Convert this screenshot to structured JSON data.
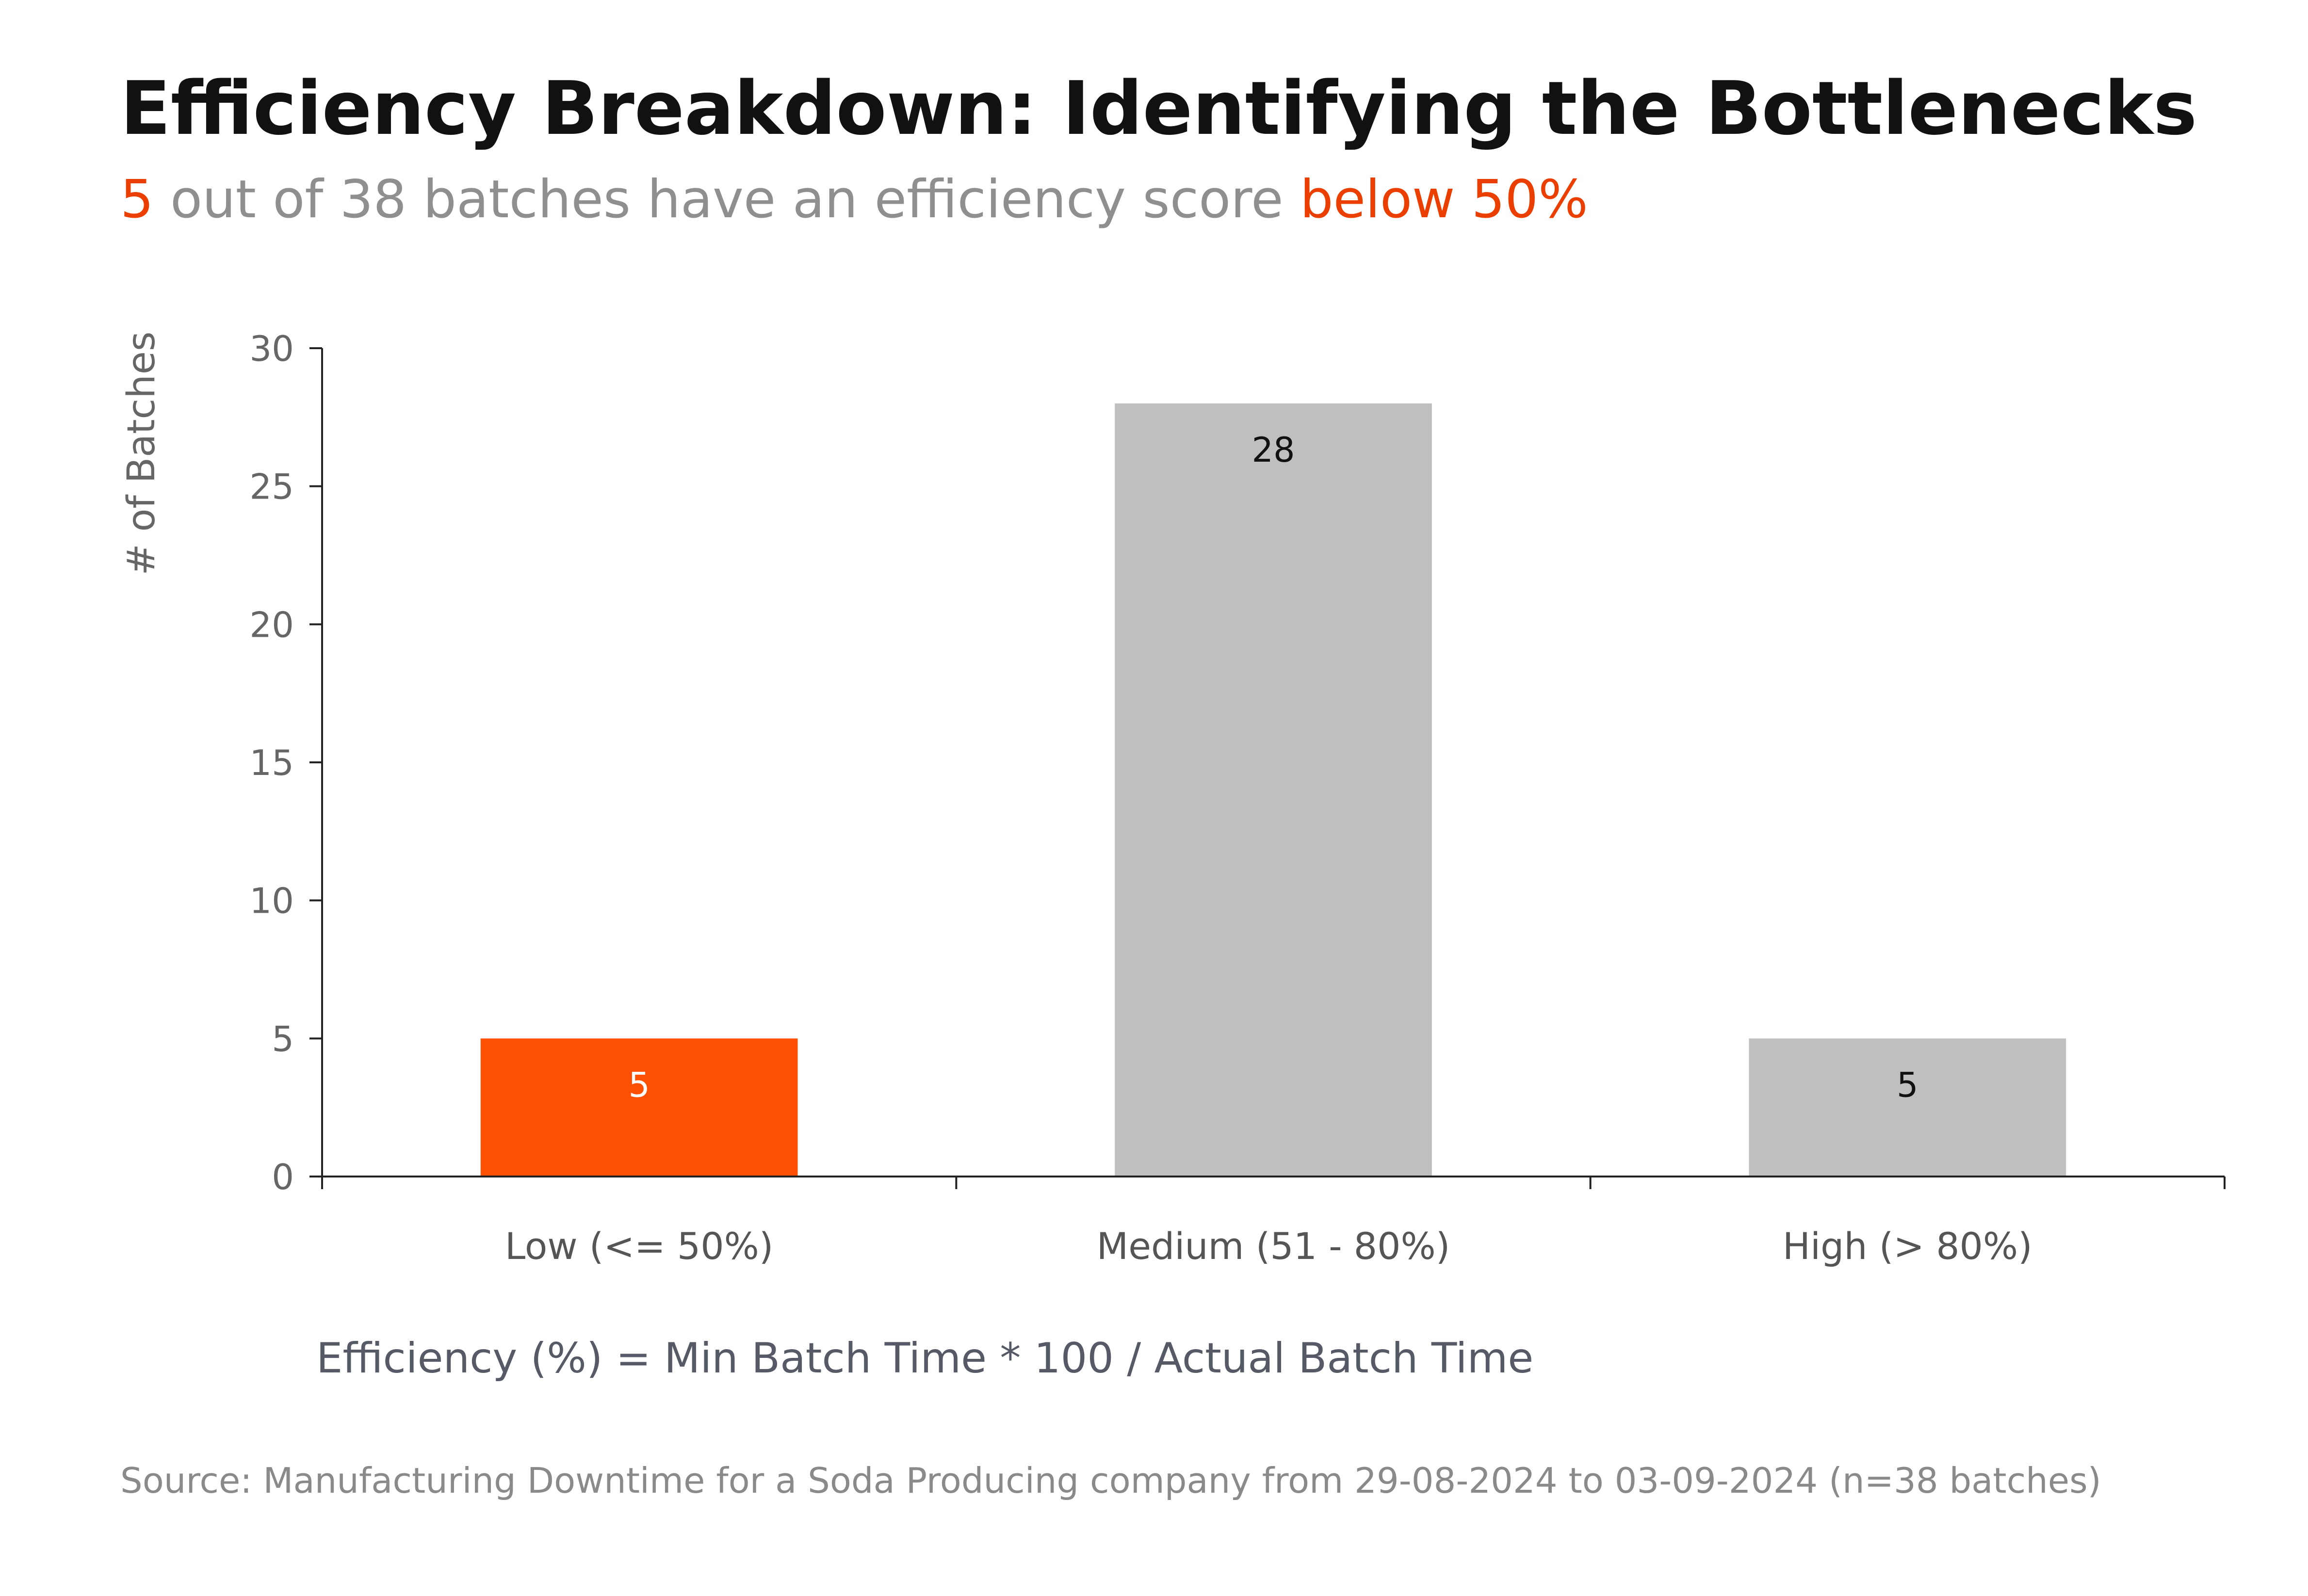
{
  "title": "Efficiency Breakdown: Identifying the Bottlenecks",
  "subtitle": {
    "count": "5",
    "middle": " out of 38 batches have an efficiency score ",
    "highlight": "below 50%"
  },
  "formula": "Efficiency (%) = Min Batch Time * 100 / Actual Batch Time",
  "source": "Source: Manufacturing Downtime for a Soda Producing company from 29-08-2024 to 03-09-2024 (n=38 batches)",
  "colors": {
    "accent": "#fd5002",
    "accent_text": "#ea3f00",
    "neutral_bar": "#bfbfbf",
    "axis": "#222222",
    "bar_label_on_accent": "#ffffff",
    "bar_label_on_neutral": "#111111"
  },
  "chart_data": {
    "type": "bar",
    "title": "",
    "xlabel": "",
    "ylabel": "# of Batches",
    "categories": [
      "Low (<= 50%)",
      "Medium (51 - 80%)",
      "High (> 80%)"
    ],
    "values": [
      5,
      28,
      5
    ],
    "data_labels": [
      "5",
      "28",
      "5"
    ],
    "highlighted": [
      "Low (<= 50%)"
    ],
    "ylim": [
      0,
      30
    ],
    "yticks": [
      0,
      5,
      10,
      15,
      20,
      25,
      30
    ],
    "grid": false,
    "legend": "none"
  }
}
